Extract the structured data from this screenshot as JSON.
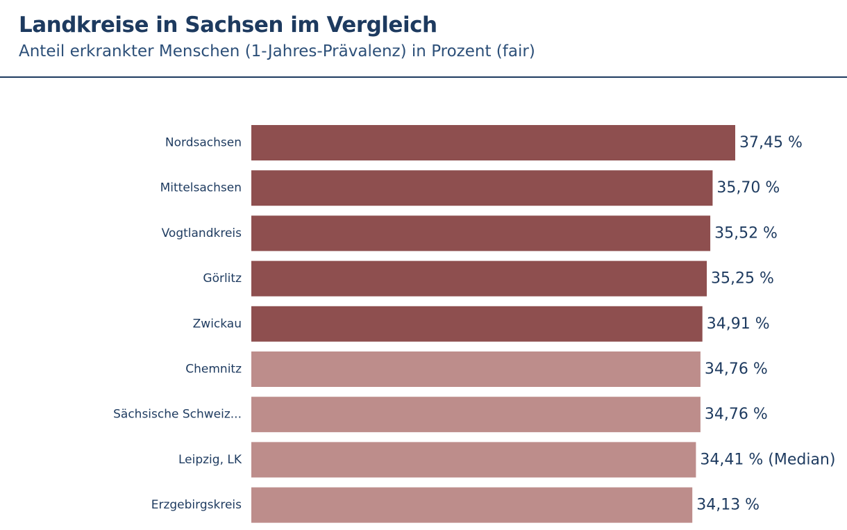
{
  "header": {
    "title": "Landkreise in Sachsen im Vergleich",
    "subtitle": "Anteil erkrankter Menschen (1-Jahres-Prävalenz) in Prozent (fair)"
  },
  "colors": {
    "text": "#1d3a5f",
    "bar_top": "#8e4f4f",
    "bar_rest": "#bd8d8b",
    "rule": "#1d3a5f"
  },
  "chart_data": {
    "type": "bar",
    "orientation": "horizontal",
    "title": "Landkreise in Sachsen im Vergleich",
    "subtitle": "Anteil erkrankter Menschen (1-Jahres-Prävalenz) in Prozent (fair)",
    "xlabel": "",
    "ylabel": "",
    "grid": false,
    "legend": "none",
    "categories": [
      "Nordsachsen",
      "Mittelsachsen",
      "Vogtlandkreis",
      "Görlitz",
      "Zwickau",
      "Chemnitz",
      "Sächsische Schweiz...",
      "Leipzig, LK",
      "Erzgebirgskreis"
    ],
    "values": [
      37.45,
      35.7,
      35.52,
      35.25,
      34.91,
      34.76,
      34.76,
      34.41,
      34.13
    ],
    "value_labels": [
      "37,45 %",
      "35,70 %",
      "35,52 %",
      "35,25 %",
      "34,91 %",
      "34,76 %",
      "34,76 %",
      "34,41 % (Median)",
      "34,13 %"
    ],
    "highlight": [
      true,
      true,
      true,
      true,
      true,
      false,
      false,
      false,
      false
    ],
    "xlim": [
      0,
      37.45
    ]
  }
}
